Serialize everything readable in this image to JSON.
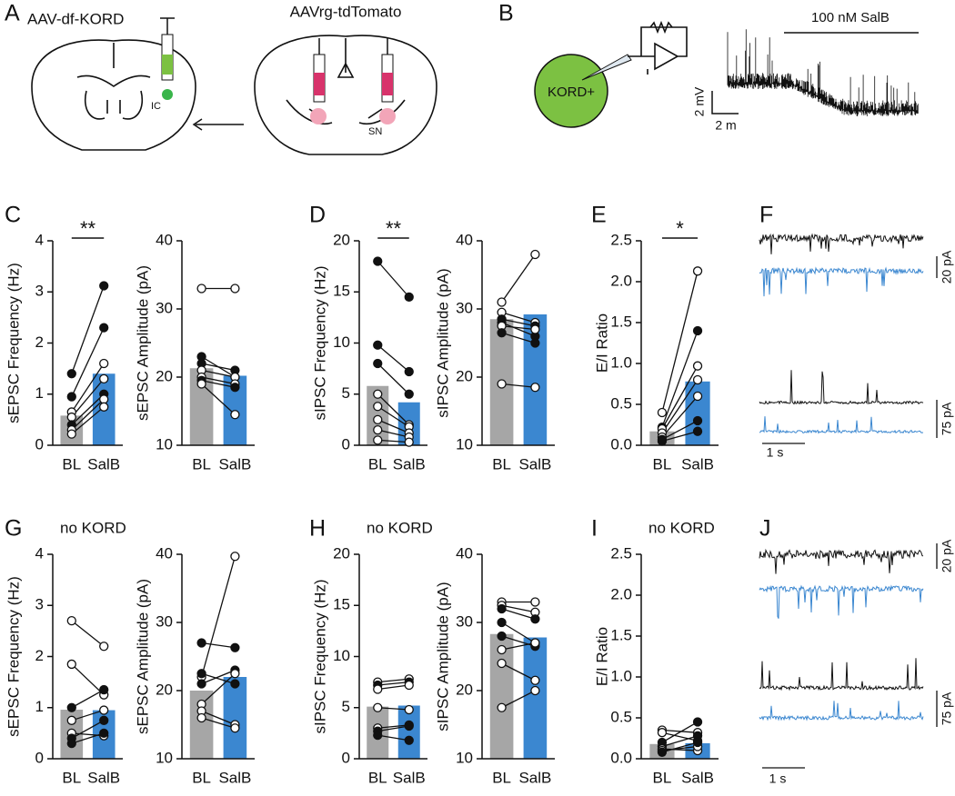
{
  "panel_labels": [
    "A",
    "B",
    "C",
    "D",
    "E",
    "F",
    "G",
    "H",
    "I",
    "J"
  ],
  "panel_a": {
    "left_label": "AAV-df-KORD",
    "ic": "IC",
    "right_label": "AAVrg-tdTomato",
    "sn": "SN"
  },
  "panel_b": {
    "cell": "KORD+",
    "drug": "100 nM SalB",
    "scale_y": "2 mV",
    "scale_x": "2 m"
  },
  "panel_f": {
    "scale_top": "20 pA",
    "scale_bottom": "75 pA",
    "scale_time": "1 s"
  },
  "panel_j": {
    "scale_top": "20 pA",
    "scale_bottom": "75 pA",
    "scale_time": "1 s"
  },
  "chart_data": [
    {
      "type": "bar",
      "ylabel": "sEPSC Frequency (Hz)",
      "categories": [
        "BL",
        "SalB"
      ],
      "colors": [
        "#a6a6a6",
        "#3b87d0"
      ],
      "values": [
        0.58,
        1.4
      ],
      "ylim": [
        0,
        4
      ],
      "yticks": [
        0,
        1,
        2,
        3,
        4
      ],
      "significance": "**",
      "pairs": [
        [
          1.4,
          3.12
        ],
        [
          0.95,
          2.3
        ],
        [
          0.65,
          1.6
        ],
        [
          0.55,
          1.3
        ],
        [
          0.4,
          1.0
        ],
        [
          0.3,
          0.9
        ],
        [
          0.22,
          0.75
        ]
      ],
      "filled": [
        true,
        true,
        false,
        false,
        true,
        false,
        false
      ]
    },
    {
      "type": "bar",
      "ylabel": "sEPSC Amplitude (pA)",
      "categories": [
        "BL",
        "SalB"
      ],
      "colors": [
        "#a6a6a6",
        "#3b87d0"
      ],
      "values": [
        21.3,
        20.2
      ],
      "ylim": [
        10,
        40
      ],
      "yticks": [
        10,
        20,
        30,
        40
      ],
      "pairs": [
        [
          33,
          33
        ],
        [
          23,
          20
        ],
        [
          22,
          21
        ],
        [
          21,
          20
        ],
        [
          20,
          19
        ],
        [
          19.5,
          18.5
        ],
        [
          19,
          14.5
        ]
      ],
      "filled": [
        false,
        true,
        true,
        false,
        false,
        true,
        false
      ]
    },
    {
      "type": "bar",
      "ylabel": "sIPSC Frequency (Hz)",
      "categories": [
        "BL",
        "SalB"
      ],
      "colors": [
        "#a6a6a6",
        "#3b87d0"
      ],
      "values": [
        5.8,
        4.2
      ],
      "ylim": [
        0,
        20
      ],
      "yticks": [
        0,
        5,
        10,
        15,
        20
      ],
      "significance": "**",
      "pairs": [
        [
          18,
          14.5
        ],
        [
          9.8,
          7.2
        ],
        [
          8,
          5
        ],
        [
          5,
          2
        ],
        [
          3.8,
          1.8
        ],
        [
          2.5,
          1.2
        ],
        [
          1.5,
          0.8
        ],
        [
          0.5,
          0.3
        ]
      ],
      "filled": [
        true,
        true,
        true,
        false,
        false,
        false,
        false,
        false
      ]
    },
    {
      "type": "bar",
      "ylabel": "sIPSC Amplitude (pA)",
      "categories": [
        "BL",
        "SalB"
      ],
      "colors": [
        "#a6a6a6",
        "#3b87d0"
      ],
      "values": [
        28.5,
        29.2
      ],
      "ylim": [
        10,
        40
      ],
      "yticks": [
        10,
        20,
        30,
        40
      ],
      "pairs": [
        [
          31,
          38
        ],
        [
          29.5,
          28
        ],
        [
          28.5,
          27.5
        ],
        [
          28,
          26
        ],
        [
          27.5,
          27
        ],
        [
          26.5,
          25
        ],
        [
          19,
          18.5
        ]
      ],
      "filled": [
        false,
        false,
        true,
        true,
        false,
        true,
        false
      ]
    },
    {
      "type": "bar",
      "ylabel": "E/I Ratio",
      "categories": [
        "BL",
        "SalB"
      ],
      "colors": [
        "#a6a6a6",
        "#3b87d0"
      ],
      "values": [
        0.17,
        0.78
      ],
      "ylim": [
        0,
        2.5
      ],
      "yticks": [
        {
          "value": 0,
          "label": "0.0"
        },
        0.5,
        {
          "value": 1,
          "label": "1.0"
        },
        1.5,
        {
          "value": 2,
          "label": "2.0"
        },
        2.5
      ],
      "significance": "*",
      "pairs": [
        [
          0.4,
          2.13
        ],
        [
          0.22,
          1.4
        ],
        [
          0.2,
          0.97
        ],
        [
          0.15,
          0.8
        ],
        [
          0.1,
          0.6
        ],
        [
          0.07,
          0.3
        ],
        [
          0.05,
          0.17
        ]
      ],
      "filled": [
        false,
        true,
        false,
        false,
        false,
        true,
        true
      ]
    },
    {
      "type": "bar",
      "ylabel": "sEPSC Frequency (Hz)",
      "categories": [
        "BL",
        "SalB"
      ],
      "colors": [
        "#a6a6a6",
        "#3b87d0"
      ],
      "values": [
        0.96,
        0.95
      ],
      "ylim": [
        0,
        4
      ],
      "yticks": [
        0,
        1,
        2,
        3,
        4
      ],
      "annotation": "no KORD",
      "pairs": [
        [
          2.7,
          2.2
        ],
        [
          1.85,
          1.25
        ],
        [
          1.0,
          1.35
        ],
        [
          0.75,
          0.95
        ],
        [
          0.5,
          0.45
        ],
        [
          0.4,
          0.75
        ],
        [
          0.3,
          0.5
        ]
      ],
      "filled": [
        false,
        false,
        true,
        false,
        false,
        true,
        true
      ]
    },
    {
      "type": "bar",
      "ylabel": "sEPSC Amplitude (pA)",
      "categories": [
        "BL",
        "SalB"
      ],
      "colors": [
        "#a6a6a6",
        "#3b87d0"
      ],
      "values": [
        20,
        22
      ],
      "ylim": [
        10,
        40
      ],
      "yticks": [
        10,
        20,
        30,
        40
      ],
      "pairs": [
        [
          27,
          26.3
        ],
        [
          22,
          39.7
        ],
        [
          22.5,
          21
        ],
        [
          21,
          23
        ],
        [
          18,
          22.5
        ],
        [
          17,
          15
        ],
        [
          16,
          14.5
        ]
      ],
      "filled": [
        true,
        false,
        true,
        true,
        false,
        false,
        false
      ]
    },
    {
      "type": "bar",
      "ylabel": "sIPSC Frequency (Hz)",
      "categories": [
        "BL",
        "SalB"
      ],
      "colors": [
        "#a6a6a6",
        "#3b87d0"
      ],
      "values": [
        5.1,
        5.2
      ],
      "ylim": [
        0,
        20
      ],
      "yticks": [
        0,
        5,
        10,
        15,
        20
      ],
      "annotation": "no KORD",
      "pairs": [
        [
          7.5,
          7.8
        ],
        [
          7.2,
          7.5
        ],
        [
          6.8,
          7.2
        ],
        [
          5,
          4.8
        ],
        [
          3,
          3.3
        ],
        [
          2.7,
          3.2
        ],
        [
          2.3,
          1.8
        ]
      ],
      "filled": [
        false,
        true,
        false,
        false,
        false,
        true,
        true
      ]
    },
    {
      "type": "bar",
      "ylabel": "sIPSC Amplitude (pA)",
      "categories": [
        "BL",
        "SalB"
      ],
      "colors": [
        "#a6a6a6",
        "#3b87d0"
      ],
      "values": [
        28.3,
        27.8
      ],
      "ylim": [
        10,
        40
      ],
      "yticks": [
        10,
        20,
        30,
        40
      ],
      "pairs": [
        [
          33,
          33
        ],
        [
          32.5,
          31.5
        ],
        [
          32,
          30.5
        ],
        [
          30,
          27
        ],
        [
          28,
          26.5
        ],
        [
          26,
          27
        ],
        [
          24,
          21.5
        ],
        [
          17.5,
          20
        ]
      ],
      "filled": [
        false,
        false,
        true,
        true,
        true,
        false,
        false,
        false
      ]
    },
    {
      "type": "bar",
      "ylabel": "E/I Ratio",
      "categories": [
        "BL",
        "SalB"
      ],
      "colors": [
        "#a6a6a6",
        "#3b87d0"
      ],
      "values": [
        0.18,
        0.19
      ],
      "ylim": [
        0,
        2.5
      ],
      "yticks": [
        {
          "value": 0,
          "label": "0.0"
        },
        0.5,
        {
          "value": 1,
          "label": "1.0"
        },
        1.5,
        {
          "value": 2,
          "label": "2.0"
        },
        2.5
      ],
      "annotation": "no KORD",
      "pairs": [
        [
          0.35,
          0.32
        ],
        [
          0.32,
          0.22
        ],
        [
          0.2,
          0.45
        ],
        [
          0.15,
          0.28
        ],
        [
          0.12,
          0.1
        ],
        [
          0.1,
          0.15
        ],
        [
          0.08,
          0.2
        ]
      ],
      "filled": [
        false,
        false,
        true,
        true,
        false,
        false,
        true
      ]
    }
  ]
}
